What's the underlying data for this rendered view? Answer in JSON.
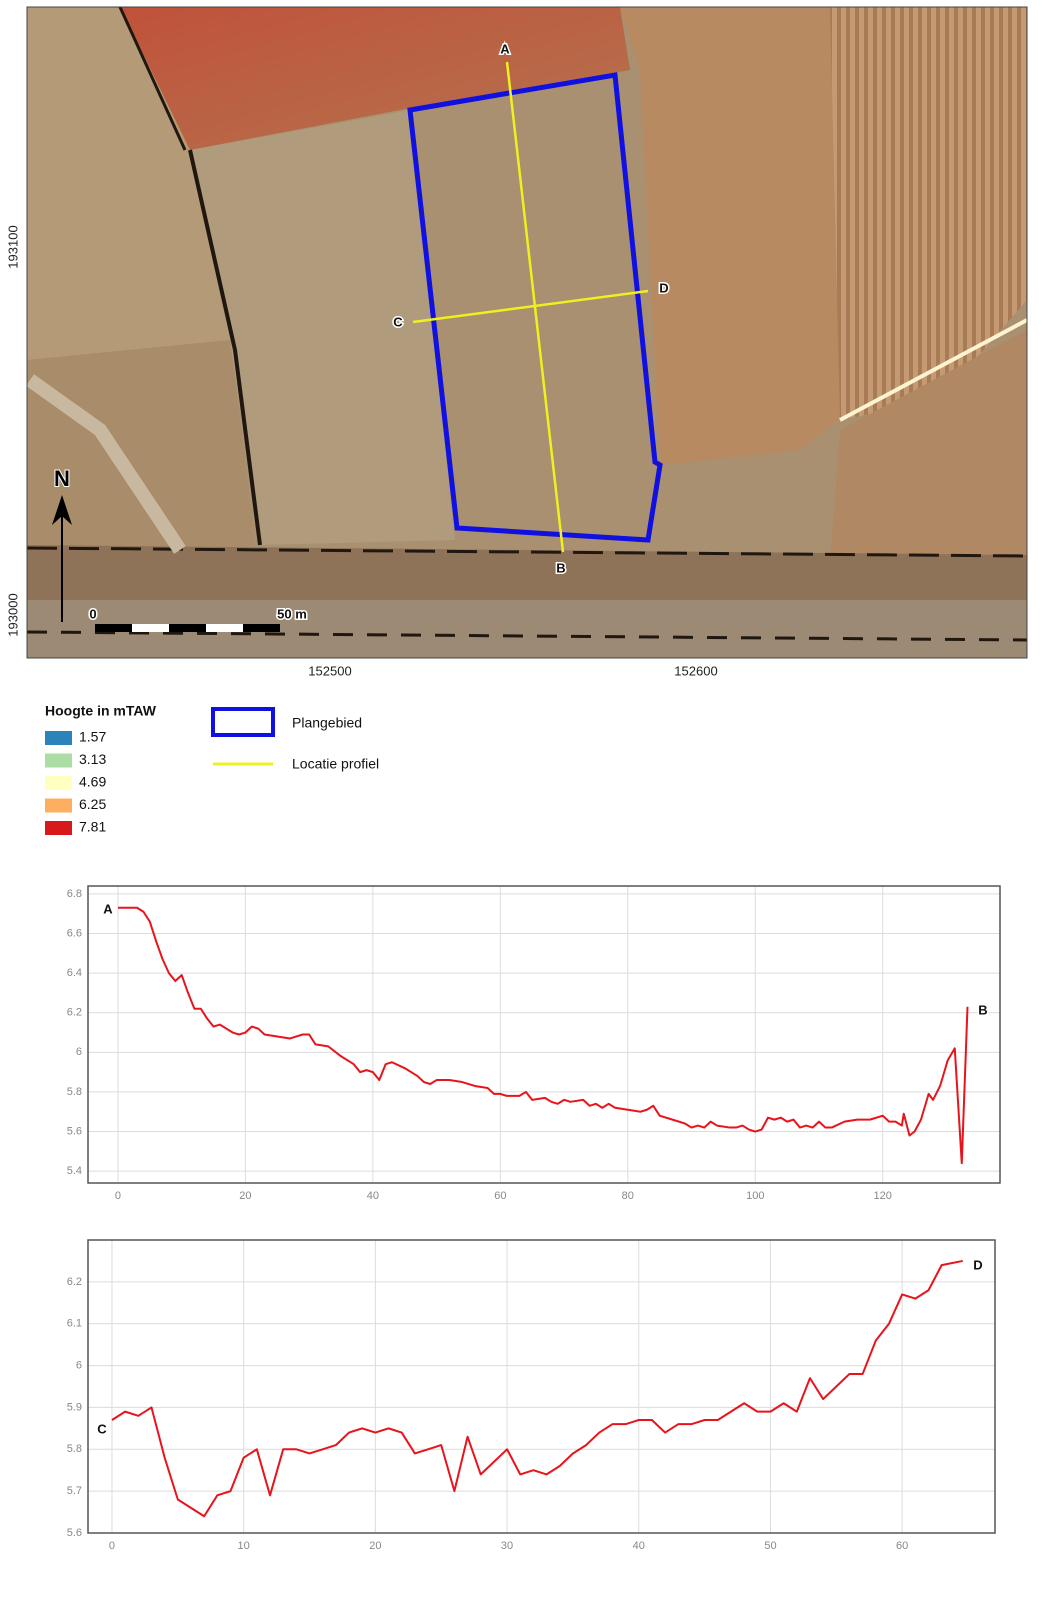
{
  "map": {
    "y_labels": [
      "193100",
      "193000"
    ],
    "x_labels": [
      "152500",
      "152600"
    ],
    "north": "N",
    "scale": [
      "0",
      "50 m"
    ],
    "profile_points": [
      "A",
      "B",
      "C",
      "D"
    ]
  },
  "legend": {
    "title": "Hoogte in mTAW",
    "classes": [
      {
        "label": "1.57",
        "color": "#2b83ba"
      },
      {
        "label": "3.13",
        "color": "#abdda4"
      },
      {
        "label": "4.69",
        "color": "#ffffbf"
      },
      {
        "label": "6.25",
        "color": "#fdae61"
      },
      {
        "label": "7.81",
        "color": "#d7191c"
      }
    ],
    "area": {
      "label": "Plangebied",
      "color": "#1010e0"
    },
    "profile": {
      "label": "Locatie profiel",
      "color": "#f0f020"
    }
  },
  "chart_data": [
    {
      "type": "line",
      "annotations": [
        "A",
        "B"
      ],
      "grid": true,
      "color": "#e8141b",
      "xlim": [
        -4.7,
        138.4
      ],
      "ylim": [
        5.34,
        6.84
      ],
      "xticks": [
        0,
        20,
        40,
        60,
        80,
        100,
        120
      ],
      "yticks": [
        5.4,
        5.6,
        5.8,
        6,
        6.2,
        6.4,
        6.6,
        6.8
      ],
      "x": [
        0,
        1,
        3,
        4,
        5,
        6,
        7,
        8,
        9,
        10,
        11,
        12,
        13,
        14,
        15,
        16,
        17,
        18,
        19,
        20,
        21,
        22,
        23,
        25,
        27,
        28,
        29,
        30,
        31,
        33,
        35,
        37,
        38,
        39,
        40,
        41,
        42,
        43,
        45,
        47,
        48,
        49,
        50,
        52,
        54,
        56,
        58,
        59,
        60,
        61,
        63,
        64,
        65,
        67,
        68,
        69,
        70,
        71,
        73,
        74,
        75,
        76,
        77,
        78,
        80,
        82,
        83,
        84,
        85,
        87,
        89,
        90,
        91,
        92,
        93,
        94,
        96,
        97,
        98,
        99,
        100,
        101,
        102,
        103,
        104,
        105,
        106,
        107,
        108,
        109,
        110,
        111,
        112,
        114,
        116,
        118,
        120,
        121,
        122,
        123,
        123.3,
        124.2,
        125,
        126,
        127.2,
        127.9,
        129,
        130.2,
        131.3,
        132.4,
        133.3
      ],
      "values": [
        6.73,
        6.73,
        6.73,
        6.71,
        6.66,
        6.56,
        6.47,
        6.4,
        6.36,
        6.39,
        6.3,
        6.22,
        6.22,
        6.17,
        6.13,
        6.14,
        6.12,
        6.1,
        6.09,
        6.1,
        6.13,
        6.12,
        6.09,
        6.08,
        6.07,
        6.08,
        6.09,
        6.09,
        6.04,
        6.03,
        5.98,
        5.94,
        5.9,
        5.91,
        5.9,
        5.86,
        5.94,
        5.95,
        5.92,
        5.88,
        5.85,
        5.84,
        5.86,
        5.86,
        5.85,
        5.83,
        5.82,
        5.79,
        5.79,
        5.78,
        5.78,
        5.8,
        5.76,
        5.77,
        5.75,
        5.74,
        5.76,
        5.75,
        5.76,
        5.73,
        5.74,
        5.72,
        5.74,
        5.72,
        5.71,
        5.7,
        5.71,
        5.73,
        5.68,
        5.66,
        5.64,
        5.62,
        5.63,
        5.62,
        5.65,
        5.63,
        5.62,
        5.62,
        5.63,
        5.61,
        5.6,
        5.61,
        5.67,
        5.66,
        5.67,
        5.65,
        5.66,
        5.62,
        5.63,
        5.62,
        5.65,
        5.62,
        5.62,
        5.65,
        5.66,
        5.66,
        5.68,
        5.65,
        5.65,
        5.63,
        5.69,
        5.58,
        5.6,
        5.66,
        5.79,
        5.76,
        5.83,
        5.96,
        6.02,
        5.44,
        6.23
      ]
    },
    {
      "type": "line",
      "annotations": [
        "C",
        "D"
      ],
      "grid": true,
      "color": "#e8141b",
      "xlim": [
        -1.82,
        67.05
      ],
      "ylim": [
        5.6,
        6.3
      ],
      "xticks": [
        0,
        10,
        20,
        30,
        40,
        50,
        60
      ],
      "yticks": [
        5.6,
        5.7,
        5.8,
        5.9,
        6,
        6.1,
        6.2
      ],
      "x": [
        0,
        1,
        2,
        3,
        4,
        5,
        6,
        7,
        8,
        9,
        10,
        11,
        12,
        13,
        14,
        15,
        16,
        17,
        18,
        19,
        20,
        21,
        22,
        23,
        24,
        25,
        26,
        27,
        28,
        29,
        30,
        31,
        32,
        33,
        34,
        35,
        36,
        37,
        38,
        39,
        40,
        41,
        42,
        43,
        44,
        45,
        46,
        47,
        48,
        49,
        50,
        51,
        52,
        53,
        54,
        55,
        56,
        57,
        58,
        59,
        60,
        61,
        62,
        63,
        64.6
      ],
      "values": [
        5.87,
        5.89,
        5.88,
        5.9,
        5.78,
        5.68,
        5.66,
        5.64,
        5.69,
        5.7,
        5.78,
        5.8,
        5.69,
        5.8,
        5.8,
        5.79,
        5.8,
        5.81,
        5.84,
        5.85,
        5.84,
        5.85,
        5.84,
        5.79,
        5.8,
        5.81,
        5.7,
        5.83,
        5.74,
        5.77,
        5.8,
        5.74,
        5.75,
        5.74,
        5.76,
        5.79,
        5.81,
        5.84,
        5.86,
        5.86,
        5.87,
        5.87,
        5.84,
        5.86,
        5.86,
        5.87,
        5.87,
        5.89,
        5.91,
        5.89,
        5.89,
        5.91,
        5.89,
        5.97,
        5.92,
        5.95,
        5.98,
        5.98,
        6.06,
        6.1,
        6.17,
        6.16,
        6.18,
        6.24,
        6.25
      ]
    }
  ]
}
